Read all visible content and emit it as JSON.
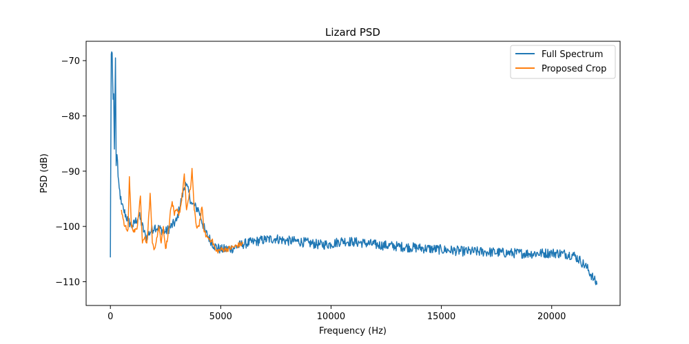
{
  "chart_data": {
    "type": "line",
    "title": "Lizard PSD",
    "xlabel": "Frequency (Hz)",
    "ylabel": "PSD (dB)",
    "xlim": [
      -1100,
      23100
    ],
    "ylim": [
      -114.3,
      -66.5
    ],
    "xticks": [
      0,
      5000,
      10000,
      15000,
      20000
    ],
    "xtick_labels": [
      "0",
      "5000",
      "10000",
      "15000",
      "20000"
    ],
    "yticks": [
      -70,
      -80,
      -90,
      -100,
      -110
    ],
    "ytick_labels": [
      "−70",
      "−80",
      "−90",
      "−100",
      "−110"
    ],
    "grid": false,
    "legend_position": "upper right",
    "series": [
      {
        "name": "Full Spectrum",
        "color": "#1f77b4",
        "noise_db": 0.9,
        "x": [
          0,
          10,
          40,
          80,
          120,
          150,
          180,
          200,
          230,
          260,
          300,
          350,
          400,
          500,
          600,
          800,
          1000,
          1300,
          1600,
          2000,
          2500,
          3000,
          3400,
          3700,
          4000,
          4300,
          4700,
          5000,
          5500,
          6000,
          6500,
          7000,
          7500,
          8000,
          8500,
          9000,
          9500,
          10000,
          10500,
          11000,
          11500,
          12000,
          13000,
          14000,
          15000,
          16000,
          17000,
          18000,
          19000,
          20000,
          20500,
          21000,
          21300,
          21600,
          21900,
          22050
        ],
        "y": [
          -105.6,
          -95,
          -68.8,
          -68.6,
          -77,
          -76,
          -86,
          -80,
          -69.5,
          -89,
          -87,
          -91,
          -93,
          -96,
          -97,
          -99,
          -100,
          -98,
          -102,
          -100,
          -101,
          -99,
          -92,
          -96,
          -97,
          -101,
          -103.5,
          -104.2,
          -104,
          -103.2,
          -102.8,
          -102.4,
          -102.2,
          -102.6,
          -102.7,
          -103,
          -103.3,
          -103.2,
          -102.6,
          -102.8,
          -103,
          -103.3,
          -103.6,
          -103.9,
          -104.2,
          -104.5,
          -104.6,
          -104.8,
          -104.9,
          -104.8,
          -104.9,
          -105.2,
          -106.2,
          -107.5,
          -109.5,
          -110.5
        ]
      },
      {
        "name": "Proposed Crop",
        "color": "#ff7f0e",
        "noise_db": 0.5,
        "x": [
          500,
          650,
          800,
          860,
          950,
          1100,
          1200,
          1300,
          1360,
          1450,
          1550,
          1650,
          1760,
          1800,
          1900,
          2000,
          2100,
          2200,
          2300,
          2400,
          2500,
          2600,
          2700,
          2800,
          2900,
          3000,
          3100,
          3200,
          3300,
          3350,
          3450,
          3550,
          3650,
          3700,
          3800,
          3900,
          4000,
          4100,
          4150,
          4250,
          4400,
          4600,
          4800,
          5000,
          5300,
          5600,
          6000
        ],
        "y": [
          -97,
          -100,
          -100.5,
          -91,
          -100,
          -101,
          -100.5,
          -97,
          -94.5,
          -103,
          -102,
          -103,
          -97,
          -94,
          -103,
          -104,
          -102,
          -100,
          -103,
          -100,
          -104,
          -102,
          -98,
          -95.5,
          -98,
          -97,
          -98,
          -96,
          -92.5,
          -90.5,
          -97,
          -95,
          -92.5,
          -89.5,
          -97,
          -100,
          -100,
          -98,
          -96.5,
          -101,
          -102,
          -102.5,
          -104.5,
          -104.2,
          -104.1,
          -103.7,
          -103.1
        ]
      }
    ]
  }
}
